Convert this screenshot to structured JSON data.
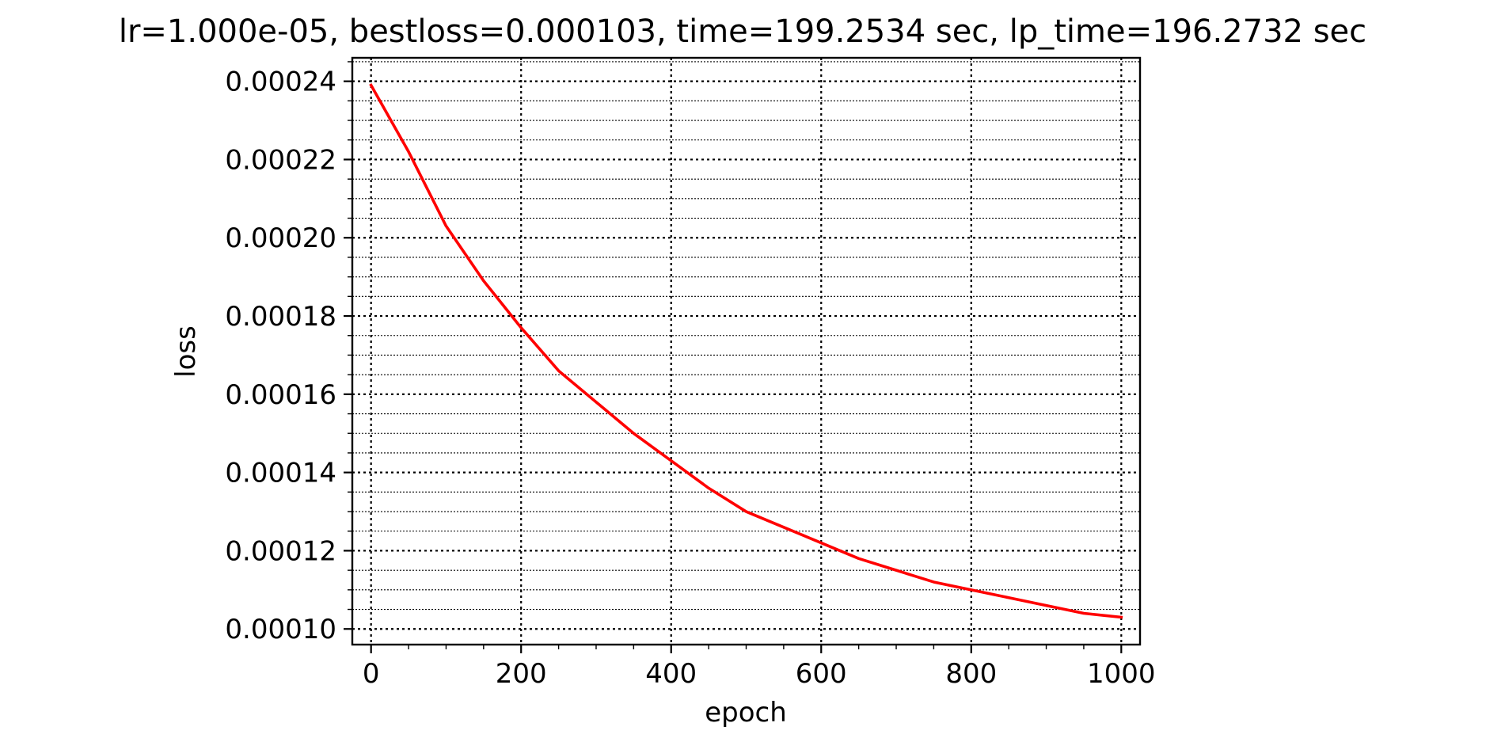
{
  "chart_data": {
    "type": "line",
    "title": "lr=1.000e-05, bestloss=0.000103, time=199.2534 sec, lp_time=196.2732 sec",
    "xlabel": "epoch",
    "ylabel": "loss",
    "xlim": [
      -25,
      1025
    ],
    "ylim": [
      9.6e-05,
      0.000246
    ],
    "x_ticks": [
      0,
      200,
      400,
      600,
      800,
      1000
    ],
    "x_tick_labels": [
      "0",
      "200",
      "400",
      "600",
      "800",
      "1000"
    ],
    "y_ticks": [
      0.0001,
      0.00012,
      0.00014,
      0.00016,
      0.00018,
      0.0002,
      0.00022,
      0.00024
    ],
    "y_tick_labels": [
      "0.00010",
      "0.00012",
      "0.00014",
      "0.00016",
      "0.00018",
      "0.00020",
      "0.00022",
      "0.00024"
    ],
    "grid": true,
    "minor_grid": true,
    "legend": false,
    "series": [
      {
        "color": "#ff0000",
        "x": [
          0,
          50,
          100,
          150,
          200,
          250,
          300,
          350,
          400,
          450,
          500,
          550,
          600,
          650,
          700,
          750,
          800,
          850,
          900,
          950,
          1000
        ],
        "y": [
          0.000239,
          0.000222,
          0.000203,
          0.000189,
          0.000177,
          0.000166,
          0.000158,
          0.00015,
          0.000143,
          0.000136,
          0.00013,
          0.000126,
          0.000122,
          0.000118,
          0.000115,
          0.000112,
          0.00011,
          0.000108,
          0.000106,
          0.000104,
          0.000103
        ]
      }
    ]
  }
}
